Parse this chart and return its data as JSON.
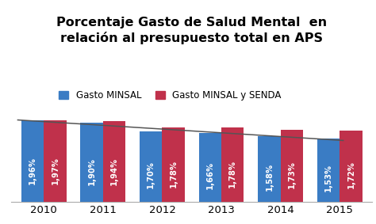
{
  "title_line1": "Porcentaje Gasto de Salud Mental  en",
  "title_line2": "relación al presupuesto total en APS",
  "years": [
    2010,
    2011,
    2012,
    2013,
    2014,
    2015
  ],
  "minsal_values": [
    1.96,
    1.9,
    1.7,
    1.66,
    1.58,
    1.53
  ],
  "senda_values": [
    1.97,
    1.94,
    1.78,
    1.78,
    1.73,
    1.72
  ],
  "minsal_labels": [
    "1,96%",
    "1,90%",
    "1,70%",
    "1,66%",
    "1,58%",
    "1,53%"
  ],
  "senda_labels": [
    "1,97%",
    "1,94%",
    "1,78%",
    "1,78%",
    "1,73%",
    "1,72%"
  ],
  "bar_width": 0.38,
  "minsal_color": "#3A7CC4",
  "senda_color": "#C0314B",
  "trend_color": "#555555",
  "background_color": "#FFFFFF",
  "legend_minsal": "Gasto MINSAL",
  "legend_senda": "Gasto MINSAL y SENDA",
  "title_fontsize": 11.5,
  "label_fontsize": 7.2,
  "legend_fontsize": 8.5,
  "tick_fontsize": 9.5
}
